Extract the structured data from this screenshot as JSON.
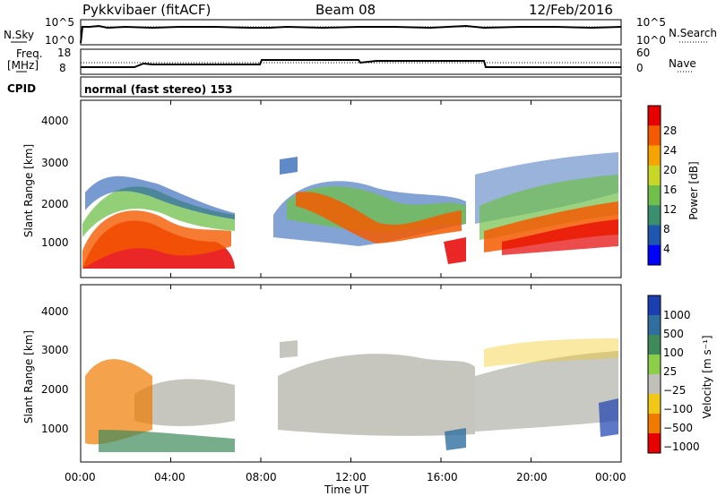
{
  "header": {
    "station": "Pykkvibaer (fitACF)",
    "beam": "Beam 08",
    "date": "12/Feb/2016"
  },
  "nsky_panel": {
    "left_label": "N.Sky",
    "right_label": "N.Search",
    "tick_top": "10^5",
    "tick_bottom": "10^0"
  },
  "freq_panel": {
    "left_label_line1": "Freq.",
    "left_label_line2": "[MHz]",
    "left_ticks": [
      "18",
      "8"
    ],
    "right_ticks": [
      "60",
      "0"
    ],
    "right_label": "Nave"
  },
  "cpid": {
    "label": "CPID",
    "text": "normal (fast stereo) 153"
  },
  "x_axis": {
    "label": "Time UT",
    "ticks": [
      "00:00",
      "04:00",
      "08:00",
      "12:00",
      "16:00",
      "20:00",
      "00:00"
    ]
  },
  "chart_data": [
    {
      "type": "heatmap",
      "ylabel": "Slant Range [km]",
      "y_ticks": [
        "4000",
        "3000",
        "2000",
        "1000"
      ],
      "colorbar_label": "Power [dB]",
      "colorbar_ticks": [
        "28",
        "24",
        "20",
        "16",
        "12",
        "8",
        "4"
      ],
      "colors": [
        "#0000ff",
        "#1d57b0",
        "#3a8f6e",
        "#6fbf4a",
        "#c8d628",
        "#f7a400",
        "#f45a00",
        "#e60000"
      ]
    },
    {
      "type": "heatmap",
      "ylabel": "Slant Range [km]",
      "y_ticks": [
        "4000",
        "3000",
        "2000",
        "1000"
      ],
      "colorbar_label": "Velocity [m s⁻¹]",
      "colorbar_ticks": [
        "1000",
        "500",
        "100",
        "25",
        "−25",
        "−100",
        "−500",
        "−1000"
      ],
      "colors": [
        "#1a3fb0",
        "#2f6f9f",
        "#3e8a5a",
        "#8ccd4a",
        "#c0c0b8",
        "#f2c818",
        "#f07a00",
        "#e60000"
      ]
    }
  ]
}
